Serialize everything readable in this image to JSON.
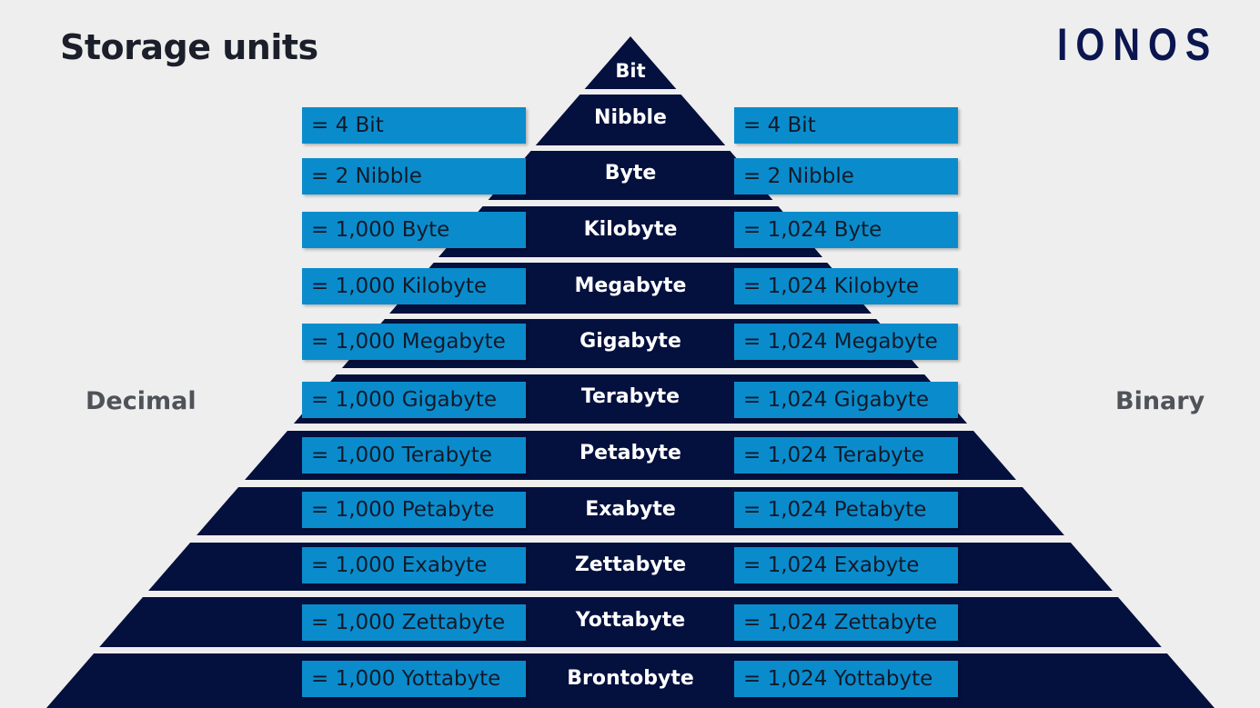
{
  "header": {
    "title": "Storage units",
    "brand": "IONOS"
  },
  "sides": {
    "left": "Decimal",
    "right": "Binary"
  },
  "colors": {
    "background": "#eeeeee",
    "pyramid": "#04103e",
    "box": "#0a8ccc",
    "box_text": "#121a2a",
    "side_label": "#4f5359",
    "brand": "#0b1650"
  },
  "units": [
    {
      "name": "Bit",
      "decimal": "",
      "binary": ""
    },
    {
      "name": "Nibble",
      "decimal": "= 4 Bit",
      "binary": "= 4 Bit"
    },
    {
      "name": "Byte",
      "decimal": "= 2 Nibble",
      "binary": "= 2 Nibble"
    },
    {
      "name": "Kilobyte",
      "decimal": "= 1,000 Byte",
      "binary": "= 1,024 Byte"
    },
    {
      "name": "Megabyte",
      "decimal": "= 1,000 Kilobyte",
      "binary": "= 1,024 Kilobyte"
    },
    {
      "name": "Gigabyte",
      "decimal": "= 1,000 Megabyte",
      "binary": "= 1,024 Megabyte"
    },
    {
      "name": "Terabyte",
      "decimal": "= 1,000 Gigabyte",
      "binary": "= 1,024 Gigabyte"
    },
    {
      "name": "Petabyte",
      "decimal": "= 1,000 Terabyte",
      "binary": "= 1,024 Terabyte"
    },
    {
      "name": "Exabyte",
      "decimal": "= 1,000 Petabyte",
      "binary": "= 1,024 Petabyte"
    },
    {
      "name": "Zettabyte",
      "decimal": "= 1,000 Exabyte",
      "binary": "= 1,024 Exabyte"
    },
    {
      "name": "Yottabyte",
      "decimal": "= 1,000 Zettabyte",
      "binary": "= 1,024 Zettabyte"
    },
    {
      "name": "Brontobyte",
      "decimal": "= 1,000 Yottabyte",
      "binary": "= 1,024 Yottabyte"
    }
  ]
}
